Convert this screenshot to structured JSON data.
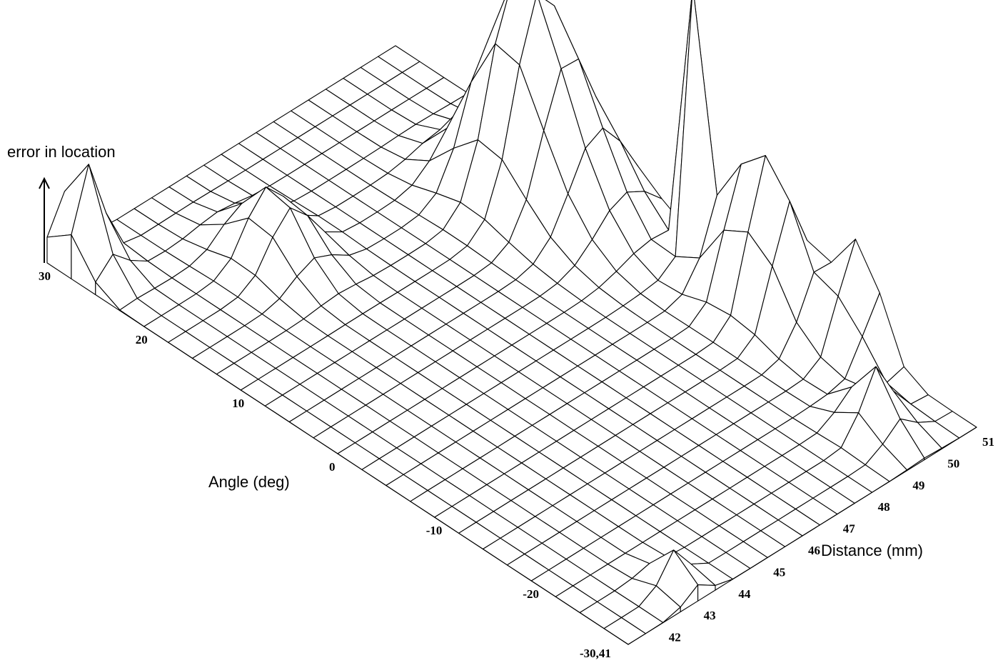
{
  "chart_data": {
    "type": "surface",
    "zlabel": "error in location",
    "xlabel": "Angle (deg)",
    "ylabel": "Distance (mm)",
    "angle_ticks": [
      "30",
      "20",
      "10",
      "0",
      "-10",
      "-20",
      "-30"
    ],
    "distance_ticks": [
      "41",
      "42",
      "43",
      "44",
      "45",
      "46",
      "47",
      "48",
      "49",
      "50",
      "51"
    ],
    "origin_tick": "-30,41",
    "angle_range": [
      -30,
      30
    ],
    "distance_range": [
      41,
      51
    ],
    "angle_step": 2.5,
    "distance_step": 0.5,
    "z_range": [
      0,
      1
    ],
    "features": [
      {
        "angle": 28,
        "distance": 41.5,
        "height": 0.35,
        "width": 1.2
      },
      {
        "angle": 19,
        "distance": 44.5,
        "height": 0.22,
        "width": 1.8
      },
      {
        "angle": 12,
        "distance": 49.5,
        "height": 0.6,
        "width": 2.2
      },
      {
        "angle": 7,
        "distance": 50,
        "height": 0.3,
        "width": 2.5
      },
      {
        "angle": -3,
        "distance": 50.5,
        "height": 1.0,
        "width": 0.6
      },
      {
        "angle": -8,
        "distance": 50.5,
        "height": 0.38,
        "width": 1.5
      },
      {
        "angle": -12,
        "distance": 50.5,
        "height": 0.35,
        "width": 1.5
      },
      {
        "angle": -18,
        "distance": 51,
        "height": 0.35,
        "width": 1.4
      },
      {
        "angle": -25,
        "distance": 49.5,
        "height": 0.2,
        "width": 1.2
      },
      {
        "angle": -28,
        "distance": 43,
        "height": 0.12,
        "width": 1.0
      }
    ]
  }
}
